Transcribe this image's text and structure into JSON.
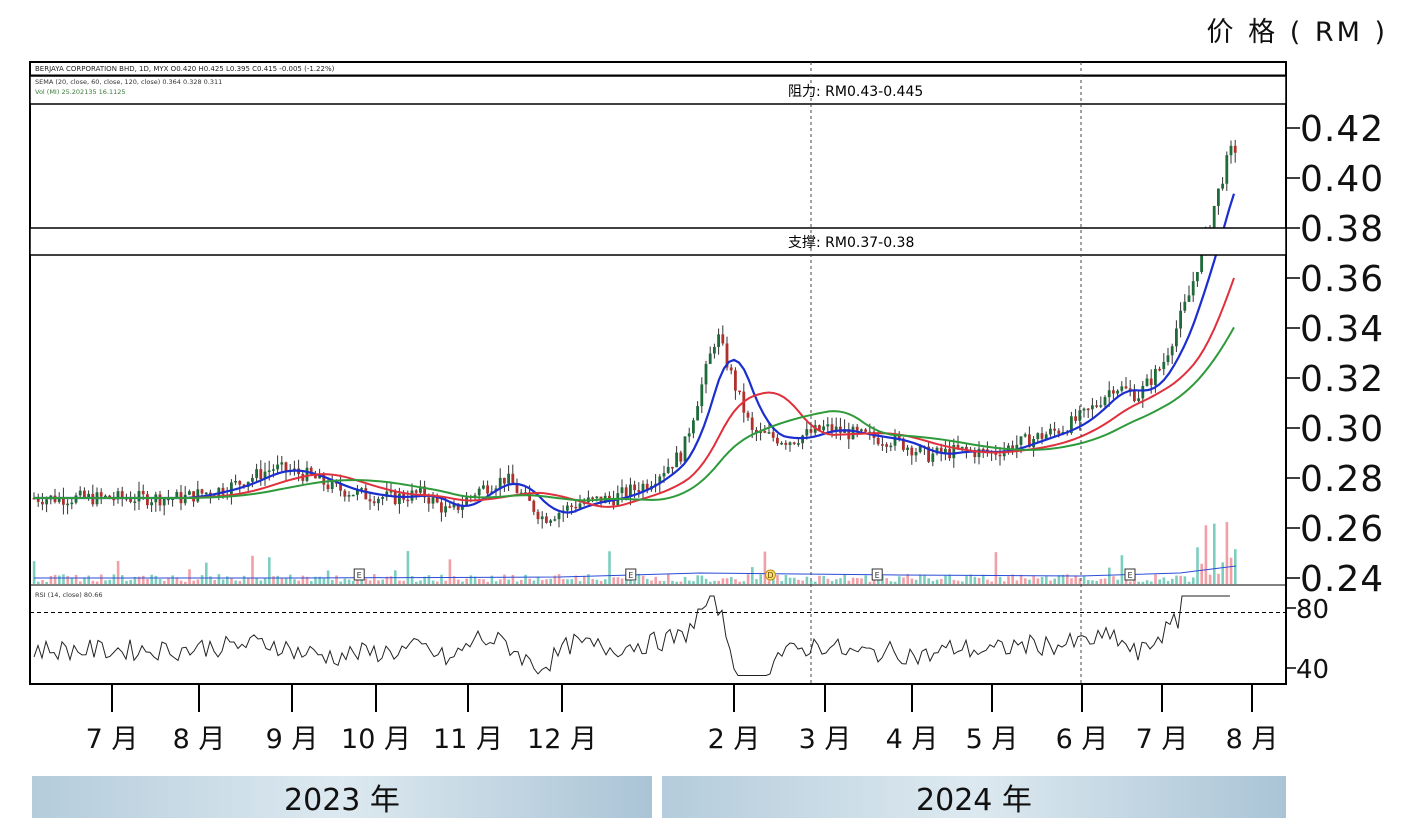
{
  "unit_label": "价 格 ( RM )",
  "colors": {
    "up": "#1f6b3a",
    "down": "#b0302c",
    "sma20": "#1b2fd0",
    "sma60": "#e0303c",
    "sma120": "#2e9a3a",
    "volume_up": "#7ccfbf",
    "volume_down": "#f2a0a6"
  },
  "chart_data": {
    "type": "line",
    "ohlc_header": "BERJAYA CORPORATION BHD, 1D, MYX  O0.420  H0.425  L0.395  C0.415  -0.005 (-1.22%)",
    "ma_header": "SEMA (20, close, 60, close, 120, close)  0.364  0.328  0.311",
    "vol_header": "Vol (MI)  25.202135  16.1125",
    "rsi_header": "RSI (14, close)  80.66",
    "resistance_label": "阻力: RM0.43-0.445",
    "support_label": "支撑: RM0.37-0.38",
    "resistance_zone": [
      0.43,
      0.445
    ],
    "support_zone": [
      0.37,
      0.38
    ],
    "y_ticks": [
      "0.42",
      "0.40",
      "0.38",
      "0.36",
      "0.34",
      "0.32",
      "0.30",
      "0.28",
      "0.26",
      "0.24"
    ],
    "y_tick_values": [
      0.42,
      0.4,
      0.38,
      0.36,
      0.34,
      0.32,
      0.3,
      0.28,
      0.26,
      0.24
    ],
    "rsi_ticks": [
      "80",
      "40"
    ],
    "rsi_tick_values": [
      80,
      40
    ],
    "rsi_threshold": 77,
    "x_ticks": [
      "7 月",
      "8 月",
      "9 月",
      "10 月",
      "11 月",
      "12 月",
      "2 月",
      "3 月",
      "4 月",
      "5 月",
      "6 月",
      "7 月",
      "8 月"
    ],
    "x_tick_index": [
      0,
      1,
      2,
      3,
      4,
      5,
      7,
      8,
      9,
      10,
      11,
      12,
      13
    ],
    "years": [
      "2023 年",
      "2024 年"
    ],
    "month_index": [
      0.8,
      1.3,
      1.8,
      2.2,
      2.5,
      2.9,
      3.2,
      3.5,
      3.8,
      4.1,
      4.4,
      4.8,
      5.2,
      5.6,
      6.0,
      6.4,
      6.8,
      7.2,
      7.6,
      8.0,
      8.4,
      8.8,
      9.2,
      9.6,
      10.0,
      10.4,
      10.8,
      11.1,
      11.4,
      11.7,
      12.0,
      12.3,
      12.55,
      12.75,
      12.95
    ],
    "close": [
      0.272,
      0.276,
      0.284,
      0.281,
      0.276,
      0.273,
      0.272,
      0.274,
      0.266,
      0.275,
      0.28,
      0.264,
      0.27,
      0.272,
      0.278,
      0.29,
      0.338,
      0.298,
      0.295,
      0.3,
      0.297,
      0.295,
      0.289,
      0.291,
      0.29,
      0.295,
      0.3,
      0.307,
      0.317,
      0.313,
      0.325,
      0.353,
      0.385,
      0.41,
      0.415
    ],
    "markers": [
      {
        "index": 2.8,
        "label": "E"
      },
      {
        "index": 5.8,
        "label": "E"
      },
      {
        "index": 7.4,
        "label": "D"
      },
      {
        "index": 8.6,
        "label": "E"
      },
      {
        "index": 11.6,
        "label": "E"
      }
    ]
  }
}
